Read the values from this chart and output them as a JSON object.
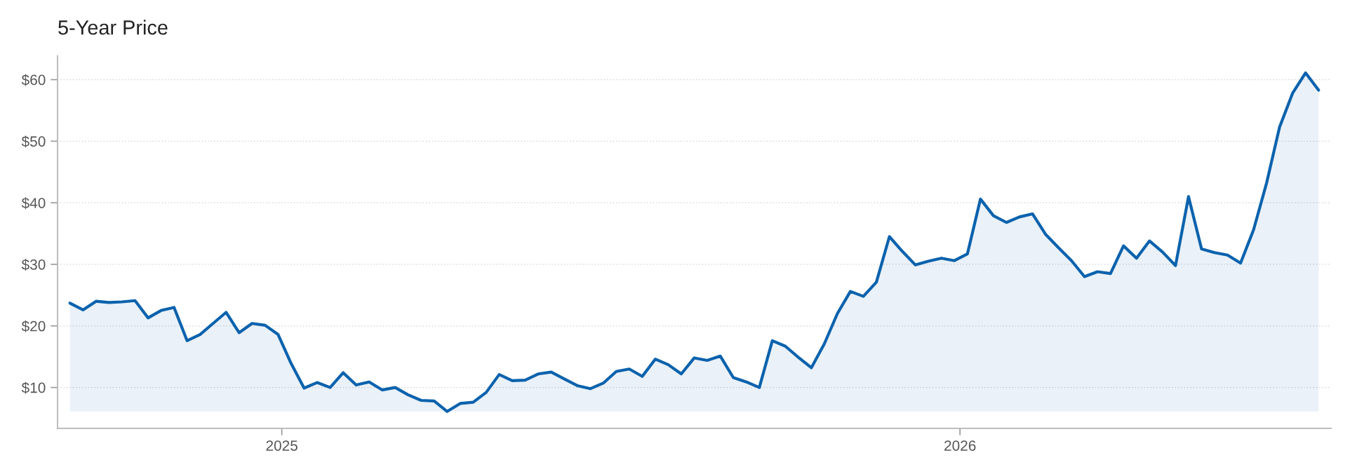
{
  "chart_data": {
    "type": "area",
    "title": "5-Year Price",
    "x": [
      "2024-09-09",
      "2024-09-16",
      "2024-09-23",
      "2024-09-30",
      "2024-10-07",
      "2024-10-14",
      "2024-10-21",
      "2024-10-28",
      "2024-11-04",
      "2024-11-11",
      "2024-11-18",
      "2024-11-25",
      "2024-12-02",
      "2024-12-09",
      "2024-12-16",
      "2024-12-23",
      "2024-12-30",
      "2025-01-06",
      "2025-01-13",
      "2025-01-20",
      "2025-01-27",
      "2025-02-03",
      "2025-02-10",
      "2025-02-17",
      "2025-02-24",
      "2025-03-03",
      "2025-03-10",
      "2025-03-17",
      "2025-03-24",
      "2025-03-31",
      "2025-04-07",
      "2025-04-14",
      "2025-04-21",
      "2025-04-28",
      "2025-05-05",
      "2025-05-12",
      "2025-05-19",
      "2025-05-26",
      "2025-06-02",
      "2025-06-09",
      "2025-06-16",
      "2025-06-23",
      "2025-06-30",
      "2025-07-07",
      "2025-07-14",
      "2025-07-21",
      "2025-07-28",
      "2025-08-04",
      "2025-08-11",
      "2025-08-18",
      "2025-08-25",
      "2025-09-01",
      "2025-09-08",
      "2025-09-15",
      "2025-09-22",
      "2025-09-29",
      "2025-10-06",
      "2025-10-13",
      "2025-10-20",
      "2025-10-27",
      "2025-11-03",
      "2025-11-10",
      "2025-11-17",
      "2025-11-24",
      "2025-12-01",
      "2025-12-08",
      "2025-12-15",
      "2025-12-22",
      "2025-12-29",
      "2026-01-05",
      "2026-01-12",
      "2026-01-19",
      "2026-01-26",
      "2026-02-02",
      "2026-02-09",
      "2026-02-16",
      "2026-02-23",
      "2026-03-02",
      "2026-03-09",
      "2026-03-16",
      "2026-03-23",
      "2026-03-30",
      "2026-04-06",
      "2026-04-13",
      "2026-04-20",
      "2026-04-27",
      "2026-05-04",
      "2026-05-11",
      "2026-05-18",
      "2026-05-25",
      "2026-06-01",
      "2026-06-08",
      "2026-06-15",
      "2026-06-22",
      "2026-06-29",
      "2026-07-06",
      "2026-07-13"
    ],
    "series": [
      {
        "color": "#0a62ad",
        "values": [
          23.7,
          22.6,
          24.0,
          23.8,
          23.9,
          24.1,
          21.3,
          22.5,
          23.0,
          17.6,
          18.6,
          20.4,
          22.2,
          18.9,
          20.4,
          20.1,
          18.6,
          13.9,
          9.9,
          10.8,
          10.0,
          12.4,
          10.4,
          10.9,
          9.6,
          10.0,
          8.8,
          7.9,
          7.8,
          6.1,
          7.4,
          7.6,
          9.2,
          12.1,
          11.1,
          11.2,
          12.2,
          12.5,
          11.4,
          10.3,
          9.8,
          10.7,
          12.6,
          13.0,
          11.8,
          14.6,
          13.7,
          12.2,
          14.8,
          14.4,
          15.1,
          11.6,
          10.9,
          10.0,
          17.6,
          16.7,
          14.9,
          13.2,
          17.1,
          22.0,
          25.6,
          24.8,
          27.1,
          34.5,
          32.1,
          29.9,
          30.5,
          31.0,
          30.6,
          31.7,
          40.6,
          37.9,
          36.8,
          37.7,
          38.2,
          34.9,
          32.7,
          30.6,
          28.0,
          28.8,
          28.5,
          33.0,
          31.0,
          33.8,
          32.0,
          29.8,
          41.0,
          32.5,
          31.9,
          31.5,
          30.2,
          35.6,
          43.2,
          52.3,
          57.8,
          61.1,
          58.3
        ]
      }
    ],
    "xlim": [
      "2024-09-02T07:00",
      "2026-07-19T17:00"
    ],
    "ylim": [
      3.35,
      63.85
    ],
    "xticks": [
      {
        "value": "2025-01-01",
        "label": "2025"
      },
      {
        "value": "2026-01-01",
        "label": "2026"
      }
    ],
    "yticks": [
      {
        "value": 10,
        "label": "$10"
      },
      {
        "value": 20,
        "label": "$20"
      },
      {
        "value": 30,
        "label": "$30"
      },
      {
        "value": 40,
        "label": "$40"
      },
      {
        "value": 50,
        "label": "$50"
      },
      {
        "value": 60,
        "label": "$60"
      }
    ],
    "grid": "y"
  }
}
